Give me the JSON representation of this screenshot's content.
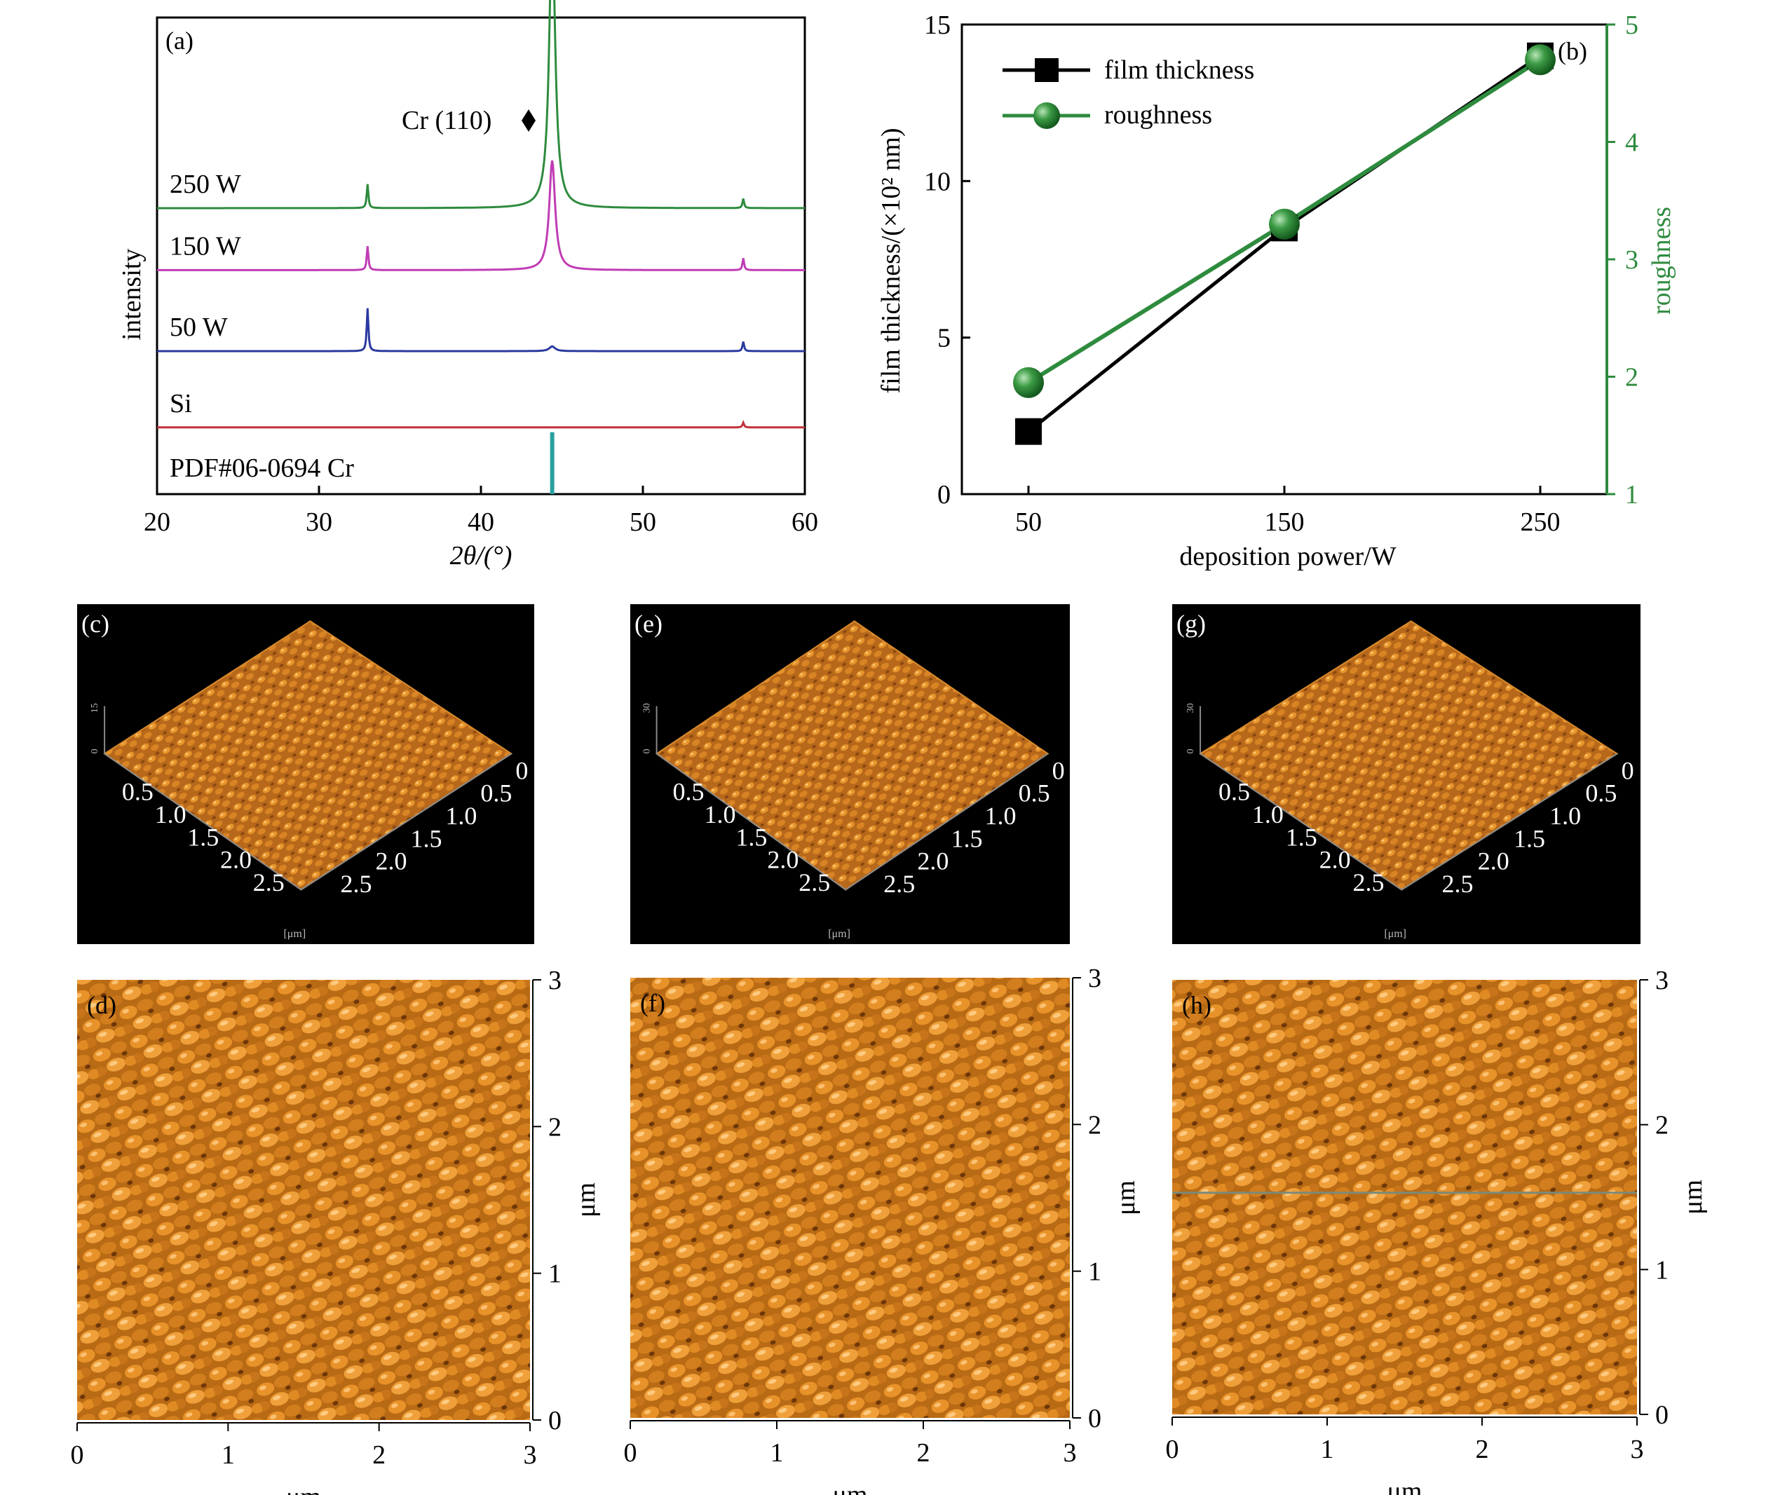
{
  "chart_data": [
    {
      "panel": "(a)",
      "type": "line",
      "xlabel": "2θ/(°)",
      "ylabel": "intensity",
      "xlim": [
        20,
        60
      ],
      "xticks": [
        20,
        30,
        40,
        50,
        60
      ],
      "annotation": "Cr (110)",
      "peak_2theta": 44.4,
      "series": [
        {
          "name": "250 W",
          "color": "#2e8b3e",
          "baseline": 0.6,
          "peaks": [
            [
              33.0,
              0.05
            ],
            [
              44.4,
              0.6
            ],
            [
              56.2,
              0.02
            ]
          ]
        },
        {
          "name": "150 W",
          "color": "#c03cb5",
          "baseline": 0.47,
          "peaks": [
            [
              33.0,
              0.05
            ],
            [
              44.4,
              0.23
            ],
            [
              56.2,
              0.025
            ]
          ]
        },
        {
          "name": "50 W",
          "color": "#2b3aa0",
          "baseline": 0.3,
          "peaks": [
            [
              33.0,
              0.09
            ],
            [
              44.4,
              0.01
            ],
            [
              56.2,
              0.02
            ]
          ]
        },
        {
          "name": "Si",
          "color": "#c0303a",
          "baseline": 0.14,
          "peaks": [
            [
              56.2,
              0.01
            ]
          ]
        }
      ],
      "reference": {
        "name": "PDF#06-0694 Cr",
        "color": "#2aa0a0",
        "position": 44.4,
        "height": 0.13
      }
    },
    {
      "panel": "(b)",
      "type": "line",
      "xlabel": "deposition power/W",
      "ylabel": "film thickness/(×10² nm)",
      "y2label": "roughness",
      "categories": [
        "50",
        "150",
        "250"
      ],
      "x": [
        50,
        150,
        250
      ],
      "ylim": [
        0,
        15
      ],
      "y2lim": [
        1,
        5
      ],
      "yticks": [
        0,
        5,
        10,
        15
      ],
      "y2ticks": [
        1,
        2,
        3,
        4,
        5
      ],
      "legend_position": "top-left",
      "series": [
        {
          "name": "film thickness",
          "axis": "left",
          "color": "#000000",
          "marker": "square",
          "values": [
            2.0,
            8.5,
            14.0
          ]
        },
        {
          "name": "roughness",
          "axis": "right",
          "color": "#2e8b3e",
          "marker": "sphere",
          "values": [
            1.95,
            3.3,
            4.7
          ]
        }
      ]
    },
    {
      "panel": "(c)",
      "type": "heatmap",
      "variant": "3d",
      "ticks_left": [
        "0.5",
        "1.0",
        "1.5",
        "2.0",
        "2.5"
      ],
      "ticks_right": [
        "0",
        "0.5",
        "1.0",
        "1.5",
        "2.0",
        "2.5"
      ],
      "zticks": [
        "0",
        "15"
      ],
      "unit": "[μm]"
    },
    {
      "panel": "(e)",
      "type": "heatmap",
      "variant": "3d",
      "ticks_left": [
        "0.5",
        "1.0",
        "1.5",
        "2.0",
        "2.5"
      ],
      "ticks_right": [
        "0",
        "0.5",
        "1.0",
        "1.5",
        "2.0",
        "2.5"
      ],
      "zticks": [
        "0",
        "30"
      ],
      "unit": "[μm]"
    },
    {
      "panel": "(g)",
      "type": "heatmap",
      "variant": "3d",
      "ticks_left": [
        "0.5",
        "1.0",
        "1.5",
        "2.0",
        "2.5"
      ],
      "ticks_right": [
        "0",
        "0.5",
        "1.0",
        "1.5",
        "2.0",
        "2.5"
      ],
      "zticks": [
        "0",
        "30"
      ],
      "unit": "[μm]"
    },
    {
      "panel": "(d)",
      "type": "heatmap",
      "variant": "2d",
      "xlabel": "μm",
      "ylabel": "μm",
      "xlim": [
        0,
        3
      ],
      "ylim": [
        0,
        3
      ],
      "xticks": [
        "0",
        "1",
        "2",
        "3"
      ],
      "yticks": [
        "0",
        "1",
        "2",
        "3"
      ]
    },
    {
      "panel": "(f)",
      "type": "heatmap",
      "variant": "2d",
      "xlabel": "μm",
      "ylabel": "μm",
      "xlim": [
        0,
        3
      ],
      "ylim": [
        0,
        3
      ],
      "xticks": [
        "0",
        "1",
        "2",
        "3"
      ],
      "yticks": [
        "0",
        "1",
        "2",
        "3"
      ]
    },
    {
      "panel": "(h)",
      "type": "heatmap",
      "variant": "2d",
      "xlabel": "μm",
      "ylabel": "μm",
      "xlim": [
        0,
        3
      ],
      "ylim": [
        0,
        3
      ],
      "xticks": [
        "0",
        "1",
        "2",
        "3"
      ],
      "yticks": [
        "0",
        "1",
        "2",
        "3"
      ]
    }
  ]
}
